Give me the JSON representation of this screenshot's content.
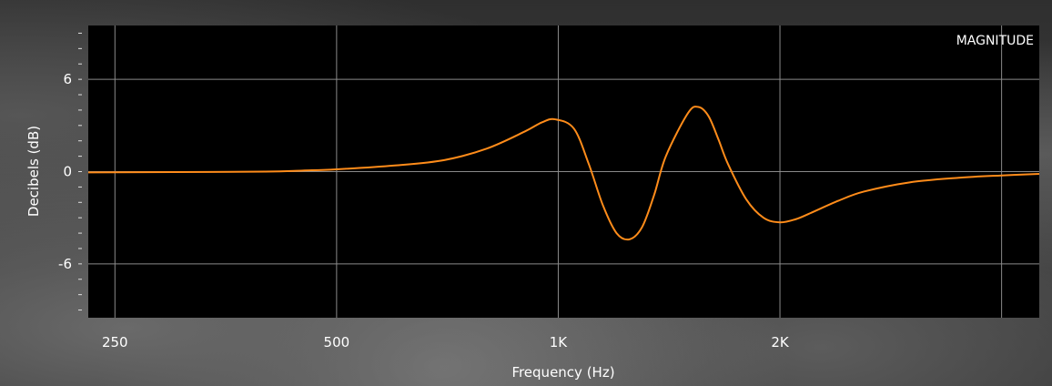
{
  "chart_data": {
    "type": "line",
    "title": "",
    "badge": "MAGNITUDE",
    "xlabel": "Frequency (Hz)",
    "ylabel": "Decibels (dB)",
    "x_scale": "log",
    "xlim": [
      230,
      4500
    ],
    "ylim": [
      -9.5,
      9.5
    ],
    "grid": true,
    "x_ticks": [
      {
        "value": 250,
        "label": "250"
      },
      {
        "value": 500,
        "label": "500"
      },
      {
        "value": 1000,
        "label": "1K"
      },
      {
        "value": 2000,
        "label": "2K"
      },
      {
        "value": 4000,
        "label": ""
      }
    ],
    "y_ticks": [
      {
        "value": 6,
        "label": "6"
      },
      {
        "value": 0,
        "label": "0"
      },
      {
        "value": -6,
        "label": "-6"
      }
    ],
    "series": [
      {
        "name": "",
        "color": "#ff8c1a",
        "x": [
          230,
          300,
          400,
          450,
          500,
          600,
          700,
          800,
          900,
          950,
          990,
          1050,
          1100,
          1150,
          1200,
          1250,
          1300,
          1350,
          1400,
          1500,
          1550,
          1600,
          1650,
          1700,
          1800,
          1900,
          2000,
          2100,
          2200,
          2400,
          2600,
          3000,
          3500,
          4000,
          4500
        ],
        "y": [
          -0.05,
          -0.03,
          0.0,
          0.07,
          0.15,
          0.4,
          0.75,
          1.5,
          2.6,
          3.2,
          3.4,
          2.8,
          0.5,
          -2.2,
          -4.0,
          -4.4,
          -3.6,
          -1.5,
          1.0,
          3.8,
          4.2,
          3.6,
          2.1,
          0.5,
          -1.8,
          -3.0,
          -3.3,
          -3.1,
          -2.7,
          -1.9,
          -1.3,
          -0.7,
          -0.4,
          -0.25,
          -0.15
        ]
      }
    ]
  }
}
